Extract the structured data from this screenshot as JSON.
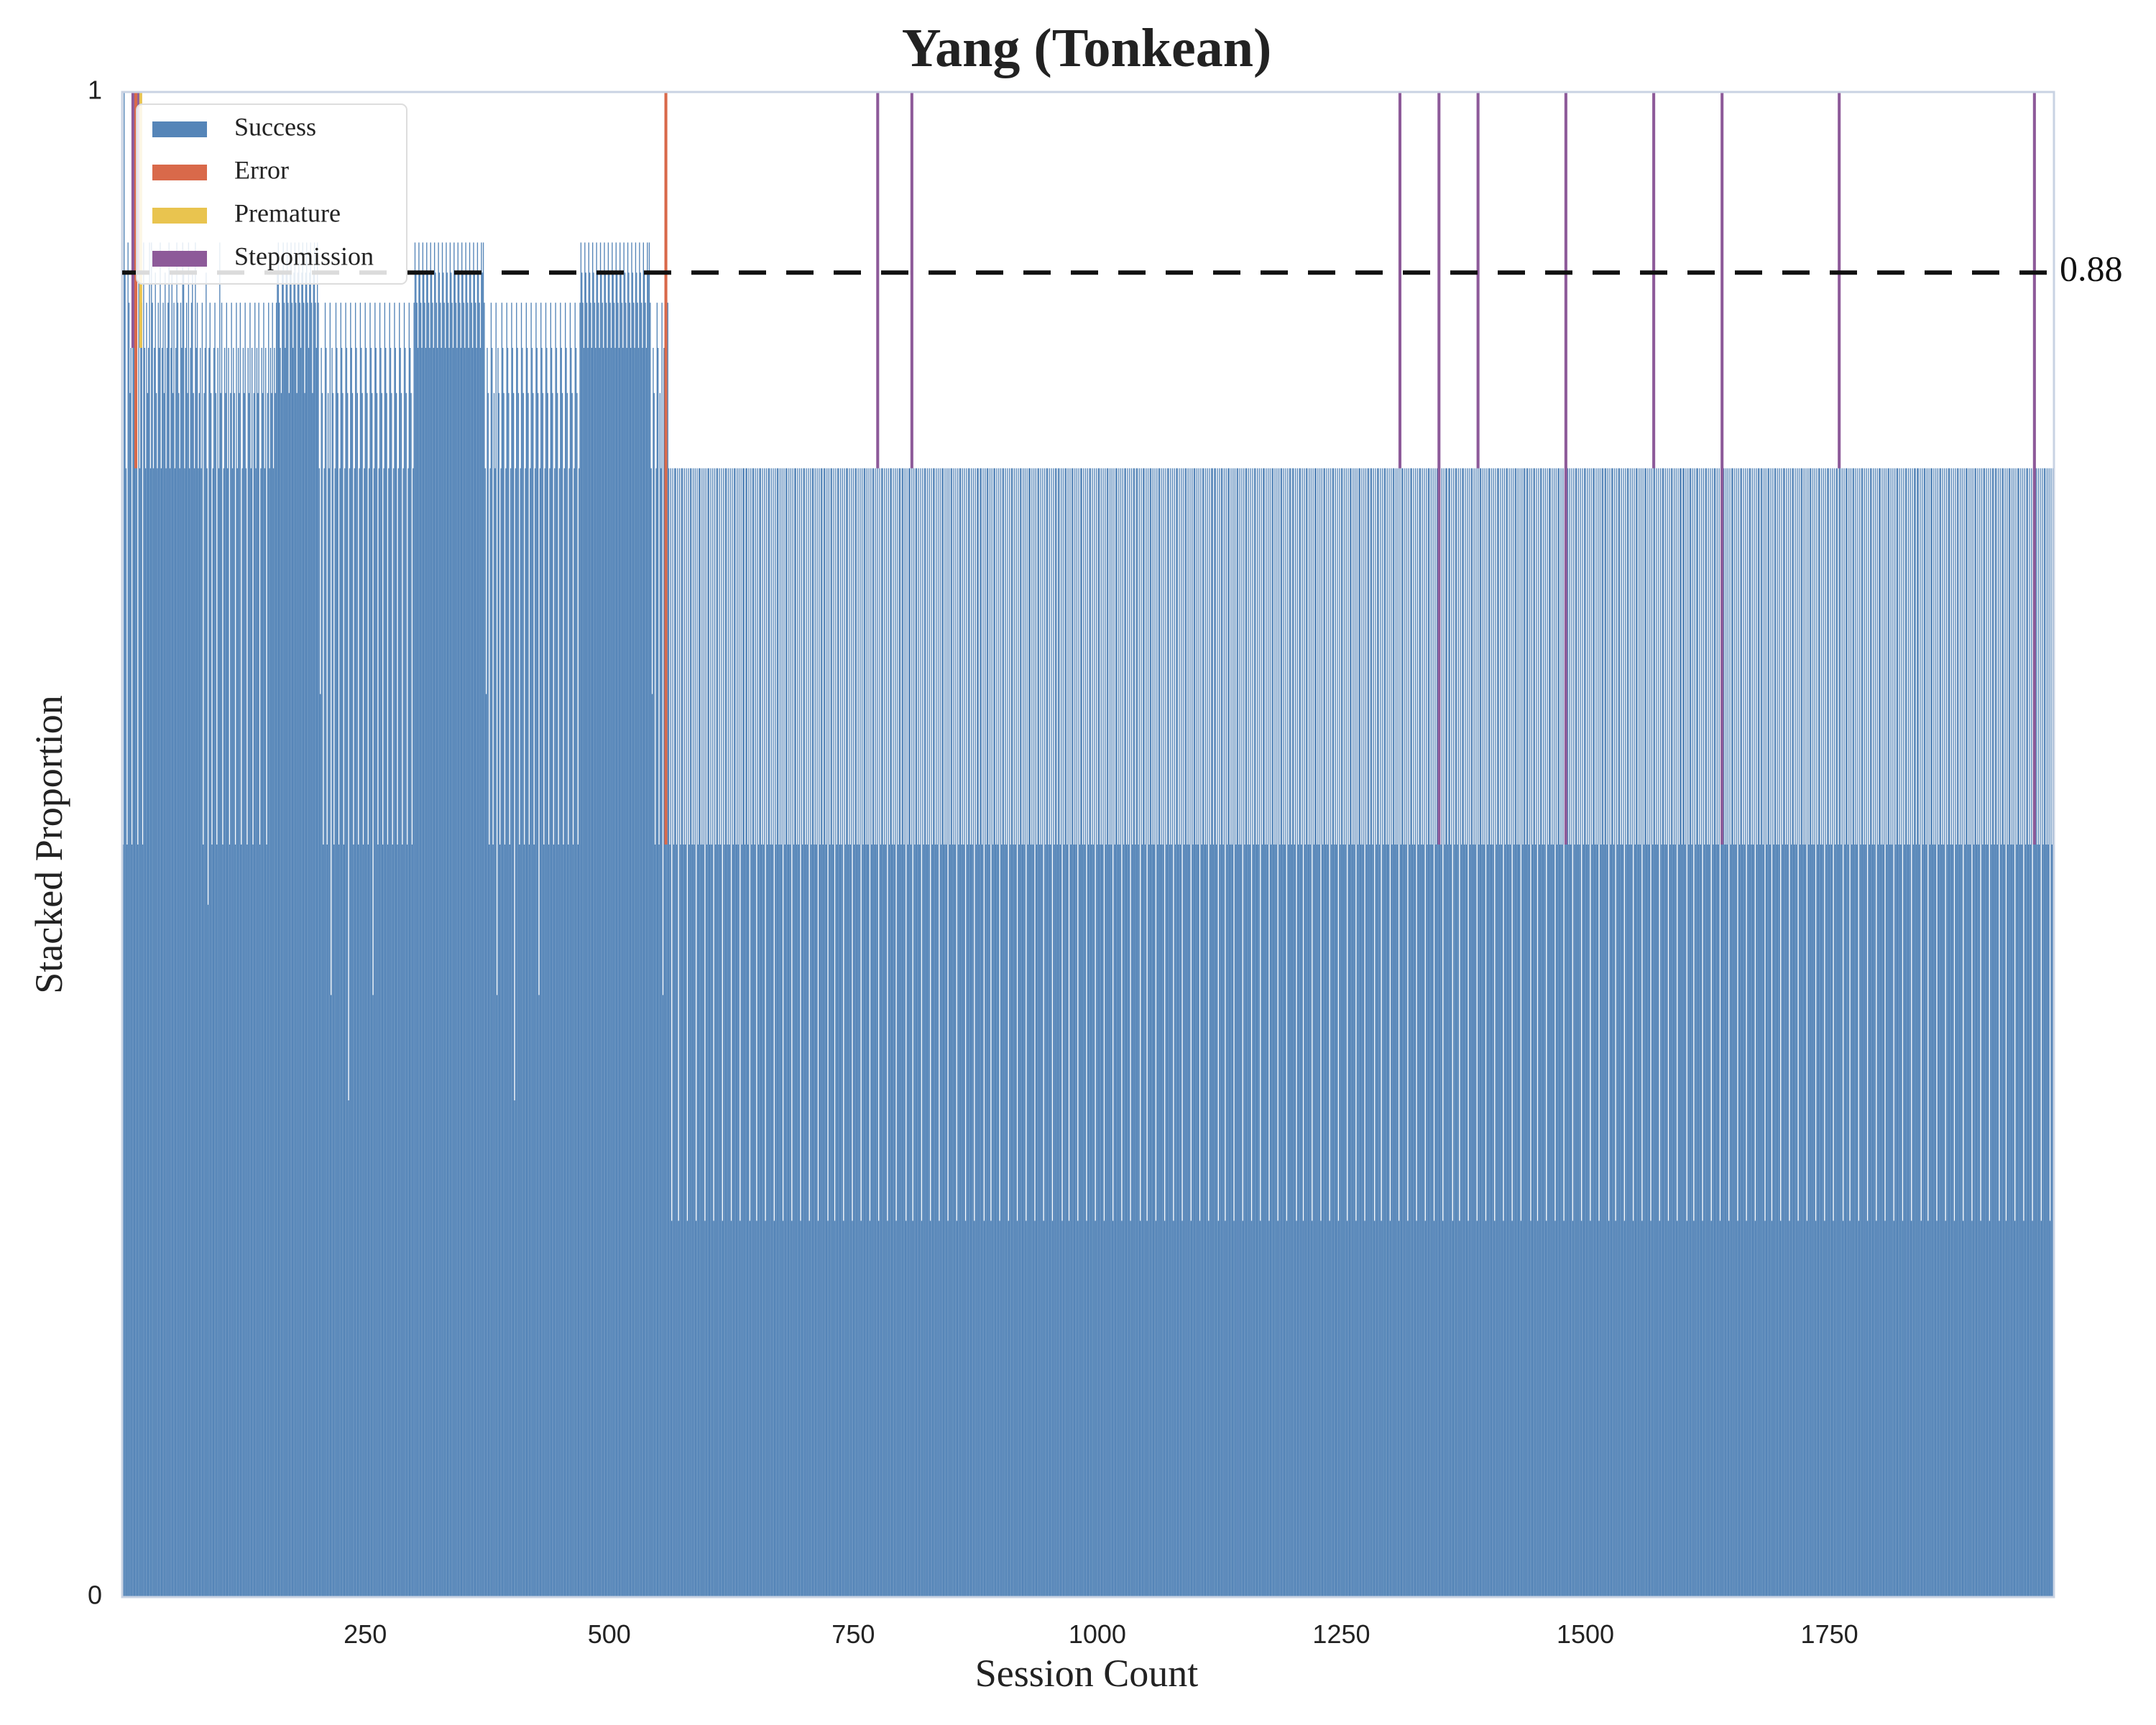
{
  "chart_data": {
    "type": "bar",
    "stacked": true,
    "title": "Yang (Tonkean)",
    "xlabel": "Session Count",
    "ylabel": "Stacked Proportion",
    "xlim": [
      1,
      1980
    ],
    "ylim": [
      0,
      1
    ],
    "x_ticks": [
      250,
      500,
      750,
      1000,
      1250,
      1500,
      1750
    ],
    "y_ticks": [
      {
        "value": 0,
        "label": "0"
      },
      {
        "value": 1,
        "label": "1"
      }
    ],
    "grid": false,
    "legend_position": "top-left",
    "series": [
      {
        "name": "Success",
        "color": "#5585b8"
      },
      {
        "name": "Error",
        "color": "#d9694a"
      },
      {
        "name": "Premature",
        "color": "#e9c44f"
      },
      {
        "name": "Stepomission",
        "color": "#8d5a99"
      }
    ],
    "reference_line": {
      "value": 0.88,
      "label": "0.88",
      "style": "dashed",
      "color": "#111111"
    },
    "success_proportion_segments": [
      {
        "x_start": 1,
        "x_end": 30,
        "values": [
          0.83,
          0.5,
          1.0,
          0.88,
          0.75,
          0.5,
          0.9,
          0.86,
          0.8,
          0.83,
          0.5,
          0.83,
          0.9,
          0.86,
          0.75,
          0.83,
          0.5,
          0.88,
          0.75,
          0.83,
          0.86,
          0.5,
          0.9,
          0.83,
          0.75,
          0.86,
          0.8,
          0.83,
          0.9,
          0.75
        ]
      },
      {
        "x_start": 31,
        "x_end": 80,
        "values": [
          0.9,
          0.86,
          0.75,
          0.83,
          0.88,
          0.8,
          0.75,
          0.86,
          0.83,
          0.9,
          0.75,
          0.83,
          0.86,
          0.8,
          0.88,
          0.75,
          0.83,
          0.86,
          0.9,
          0.75,
          0.83,
          0.88,
          0.8,
          0.86,
          0.75,
          0.83,
          0.9,
          0.86,
          0.8,
          0.75,
          0.86,
          0.83,
          0.9,
          0.88,
          0.75,
          0.83,
          0.86,
          0.8,
          0.9,
          0.75,
          0.83,
          0.86,
          0.88,
          0.8,
          0.75,
          0.9,
          0.83,
          0.86,
          0.75,
          0.8
        ]
      },
      {
        "x_start": 81,
        "x_end": 200,
        "values": [
          0.83,
          0.75,
          0.86,
          0.5,
          0.8,
          0.83,
          0.88,
          0.75,
          0.46,
          0.83,
          0.86,
          0.8,
          0.5,
          0.75,
          0.83,
          0.86,
          0.8,
          0.5,
          0.83,
          0.75,
          0.9,
          0.8,
          0.86,
          0.5,
          0.75,
          0.83,
          0.8,
          0.86,
          0.75,
          0.83,
          0.5,
          0.8,
          0.86,
          0.75,
          0.83,
          0.8,
          0.5,
          0.86,
          0.75,
          0.83,
          0.8,
          0.86,
          0.5,
          0.75,
          0.83,
          0.8,
          0.86,
          0.75,
          0.5,
          0.83,
          0.8,
          0.86,
          0.75,
          0.83,
          0.5,
          0.8,
          0.86,
          0.75,
          0.83,
          0.8,
          0.86,
          0.5,
          0.75,
          0.83,
          0.8,
          0.86,
          0.75,
          0.83,
          0.5,
          0.8,
          0.86,
          0.75,
          0.83,
          0.8,
          0.86,
          0.75,
          0.83,
          0.8,
          0.86,
          0.88,
          0.9,
          0.86,
          0.83,
          0.8,
          0.88,
          0.9,
          0.86,
          0.83,
          0.88,
          0.9,
          0.86,
          0.8,
          0.88,
          0.9,
          0.86,
          0.83,
          0.88,
          0.9,
          0.86,
          0.8,
          0.88,
          0.9,
          0.86,
          0.83,
          0.88,
          0.9,
          0.86,
          0.8,
          0.88,
          0.9,
          0.86,
          0.83,
          0.88,
          0.9,
          0.86,
          0.8,
          0.88,
          0.9,
          0.86,
          0.83
        ]
      },
      {
        "x_start": 201,
        "x_end": 560,
        "values": [
          0.9,
          0.86,
          0.75,
          0.6,
          0.83,
          0.8,
          0.5,
          0.75,
          0.86,
          0.83,
          0.5,
          0.8,
          0.75,
          0.86,
          0.4,
          0.83,
          0.8,
          0.5,
          0.75,
          0.86,
          0.83,
          0.8,
          0.5,
          0.75,
          0.86,
          0.83,
          0.8,
          0.5,
          0.75,
          0.86,
          0.83,
          0.8,
          0.33,
          0.75,
          0.86,
          0.83,
          0.8,
          0.5,
          0.75,
          0.86,
          0.83,
          0.8,
          0.5,
          0.75,
          0.86,
          0.83,
          0.8,
          0.5,
          0.75,
          0.86,
          0.83,
          0.8,
          0.5,
          0.75,
          0.86,
          0.83,
          0.8,
          0.4,
          0.75,
          0.86,
          0.83,
          0.8,
          0.5,
          0.75,
          0.86,
          0.83,
          0.8,
          0.5,
          0.75,
          0.86,
          0.83,
          0.8,
          0.5,
          0.75,
          0.86,
          0.83,
          0.8,
          0.5,
          0.75,
          0.86,
          0.83,
          0.8,
          0.5,
          0.75,
          0.86,
          0.83,
          0.8,
          0.5,
          0.75,
          0.86,
          0.83,
          0.8,
          0.5,
          0.75,
          0.86,
          0.83,
          0.8,
          0.5,
          0.75,
          0.86,
          0.9,
          0.88,
          0.86,
          0.83,
          0.9,
          0.88,
          0.86,
          0.83,
          0.9,
          0.88,
          0.86,
          0.83,
          0.9,
          0.88,
          0.86,
          0.83,
          0.9,
          0.88,
          0.86,
          0.83,
          0.9,
          0.88,
          0.86,
          0.83,
          0.9,
          0.88,
          0.86,
          0.83,
          0.9,
          0.88,
          0.86,
          0.83,
          0.9,
          0.88,
          0.86,
          0.83,
          0.9,
          0.88,
          0.86,
          0.83,
          0.9,
          0.88,
          0.86,
          0.83,
          0.9,
          0.88,
          0.86,
          0.83,
          0.9,
          0.88,
          0.86,
          0.83,
          0.9,
          0.88,
          0.86,
          0.83,
          0.9,
          0.88,
          0.86,
          0.83,
          0.9,
          0.88,
          0.86,
          0.83,
          0.9,
          0.88,
          0.86,
          0.83,
          0.9,
          0.88
        ]
      },
      {
        "x_start": 561,
        "x_end": 1980,
        "values": [
          0.75,
          0.5,
          0.75,
          0.25,
          0.75,
          0.5,
          0.75,
          0.75,
          0.5,
          0.75,
          0.25,
          0.75,
          0.5,
          0.75,
          0.75,
          0.5,
          0.75,
          0.5,
          0.75,
          0.25,
          0.75,
          0.5,
          0.75,
          0.75,
          0.5,
          0.75,
          0.5,
          0.75,
          0.25,
          0.75,
          0.5,
          0.75,
          0.75,
          0.5,
          0.75,
          0.5,
          0.75,
          0.25,
          0.75,
          0.5,
          0.75,
          0.75,
          0.5,
          0.75,
          0.5,
          0.75,
          0.25,
          0.75,
          0.5,
          0.75,
          0.75,
          0.5,
          0.75,
          0.5,
          0.75,
          0.25,
          0.75,
          0.5,
          0.75,
          0.75,
          0.5,
          0.75,
          0.5,
          0.75,
          0.25,
          0.75,
          0.5,
          0.75,
          0.75,
          0.5,
          0.75,
          0.5,
          0.75,
          0.25,
          0.75,
          0.5,
          0.75,
          0.75,
          0.5,
          0.75
        ]
      }
    ],
    "stepomission_sessions": [
      12,
      18,
      775,
      810,
      1310,
      1350,
      1390,
      1480,
      1570,
      1640,
      1760,
      1960
    ],
    "error_sessions": [
      15,
      558
    ],
    "premature_sessions": [
      20
    ]
  }
}
